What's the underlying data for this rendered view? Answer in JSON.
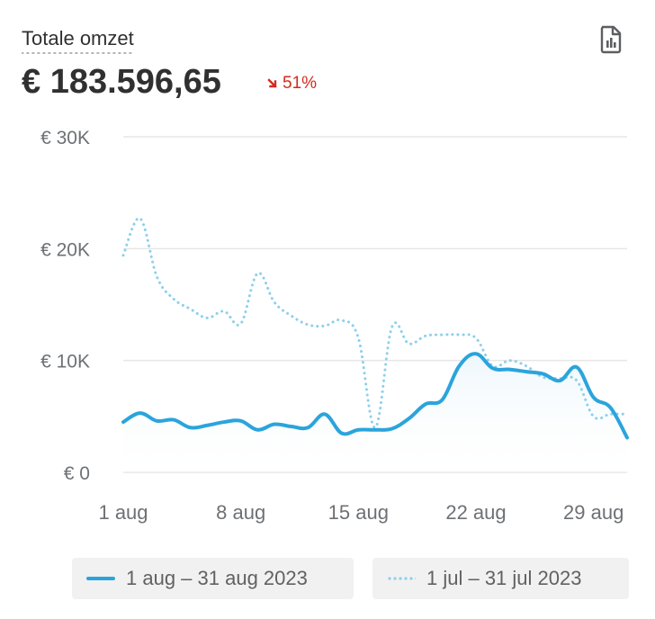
{
  "header": {
    "title": "Totale omzet",
    "total": "€ 183.596,65",
    "change": "51%",
    "change_direction": "down",
    "change_color": "#d32b1e",
    "report_icon": "report-chart-icon"
  },
  "legend": {
    "current": "1 aug – 31 aug 2023",
    "previous": "1 jul – 31 jul 2023"
  },
  "chart_data": {
    "type": "line",
    "title": "Totale omzet",
    "x_tick_labels": [
      "1 aug",
      "8 aug",
      "15 aug",
      "22 aug",
      "29 aug"
    ],
    "y_tick_labels": [
      "€ 0",
      "€ 10K",
      "€ 20K",
      "€ 30K"
    ],
    "y_ticks": [
      0,
      10000,
      20000,
      30000
    ],
    "ylim": [
      0,
      30000
    ],
    "xlim": [
      1,
      31
    ],
    "grid": true,
    "legend_position": "bottom",
    "colors": {
      "current": "#2ba4dc",
      "previous": "#8ccfec",
      "fill": "#eef7fc"
    },
    "series": [
      {
        "name": "1 aug – 31 aug 2023",
        "style": "solid",
        "x": [
          1,
          2,
          3,
          4,
          5,
          6,
          7,
          8,
          9,
          10,
          11,
          12,
          13,
          14,
          15,
          16,
          17,
          18,
          19,
          20,
          21,
          22,
          23,
          24,
          25,
          26,
          27,
          28,
          29,
          30,
          31
        ],
        "values": [
          4500,
          5300,
          4600,
          4700,
          4000,
          4200,
          4500,
          4600,
          3800,
          4300,
          4100,
          4000,
          5200,
          3500,
          3800,
          3800,
          3900,
          4800,
          6100,
          6500,
          9500,
          10600,
          9300,
          9200,
          9000,
          8800,
          8200,
          9400,
          6700,
          5800,
          3100
        ]
      },
      {
        "name": "1 jul – 31 jul 2023",
        "style": "dotted",
        "x": [
          1,
          2,
          3,
          4,
          5,
          6,
          7,
          8,
          9,
          10,
          11,
          12,
          13,
          14,
          15,
          16,
          17,
          18,
          19,
          20,
          21,
          22,
          23,
          24,
          25,
          26,
          27,
          28,
          29,
          30,
          31
        ],
        "values": [
          19400,
          22700,
          17500,
          15500,
          14600,
          13800,
          14400,
          13300,
          17800,
          15200,
          14000,
          13200,
          13100,
          13600,
          12000,
          4000,
          13000,
          11500,
          12200,
          12300,
          12300,
          12000,
          9500,
          10000,
          9500,
          8500,
          8400,
          8200,
          5000,
          5200,
          5200
        ]
      }
    ]
  }
}
